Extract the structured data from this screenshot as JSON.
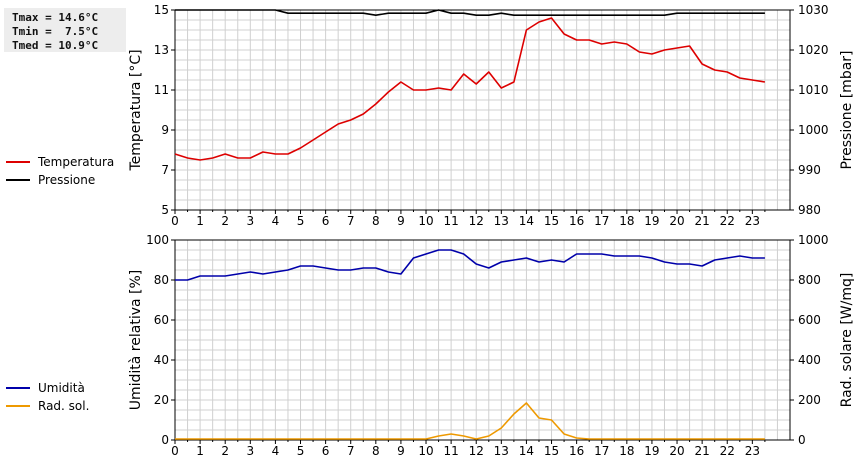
{
  "stats": {
    "tmax": "Tmax = 14.6°C",
    "tmin": "Tmin =  7.5°C",
    "tmed": "Tmed = 10.9°C"
  },
  "colors": {
    "temperature": "#dd0000",
    "pressure": "#000000",
    "humidity": "#0000aa",
    "radiation": "#ee9900",
    "grid": "#d0d0d0"
  },
  "chart_data": [
    {
      "type": "line",
      "x_ticks": [
        "0",
        "1",
        "2",
        "3",
        "4",
        "5",
        "6",
        "7",
        "8",
        "9",
        "10",
        "11",
        "12",
        "13",
        "14",
        "15",
        "16",
        "17",
        "18",
        "19",
        "20",
        "21",
        "22",
        "23"
      ],
      "xlim": [
        0,
        24.5
      ],
      "left_axis": {
        "label": "Temperatura [°C]",
        "lim": [
          5,
          15
        ],
        "ticks": [
          "5",
          "7",
          "9",
          "11",
          "13",
          "15"
        ]
      },
      "right_axis": {
        "label": "Pressione [mbar]",
        "lim": [
          980,
          1030
        ],
        "ticks": [
          "980",
          "990",
          "1000",
          "1010",
          "1020",
          "1030"
        ]
      },
      "grid": true,
      "legend_position": "left",
      "series": [
        {
          "name": "Temperatura",
          "axis": "left",
          "color": "#dd0000",
          "x": [
            0,
            0.5,
            1,
            1.5,
            2,
            2.5,
            3,
            3.5,
            4,
            4.5,
            5,
            5.5,
            6,
            6.5,
            7,
            7.5,
            8,
            8.5,
            9,
            9.5,
            10,
            10.5,
            11,
            11.5,
            12,
            12.5,
            13,
            13.5,
            14,
            14.5,
            15,
            15.5,
            16,
            16.5,
            17,
            17.5,
            18,
            18.5,
            19,
            19.5,
            20,
            20.5,
            21,
            21.5,
            22,
            22.5,
            23,
            23.5
          ],
          "y": [
            7.8,
            7.6,
            7.5,
            7.6,
            7.8,
            7.6,
            7.6,
            7.9,
            7.8,
            7.8,
            8.1,
            8.5,
            8.9,
            9.3,
            9.5,
            9.8,
            10.3,
            10.9,
            11.4,
            11.0,
            11.0,
            11.1,
            11.0,
            11.8,
            11.3,
            11.9,
            11.1,
            11.4,
            14.0,
            14.4,
            14.6,
            13.8,
            13.5,
            13.5,
            13.3,
            13.4,
            13.3,
            12.9,
            12.8,
            13.0,
            13.1,
            13.2,
            12.3,
            12.0,
            11.9,
            11.6,
            11.5,
            11.4
          ]
        },
        {
          "name": "Pressione",
          "axis": "right",
          "color": "#000000",
          "x": [
            0,
            0.5,
            1,
            1.5,
            2,
            2.5,
            3,
            3.5,
            4,
            4.5,
            5,
            5.5,
            6,
            6.5,
            7,
            7.5,
            8,
            8.5,
            9,
            9.5,
            10,
            10.5,
            11,
            11.5,
            12,
            12.5,
            13,
            13.5,
            14,
            14.5,
            15,
            15.5,
            16,
            16.5,
            17,
            17.5,
            18,
            18.5,
            19,
            19.5,
            20,
            20.5,
            21,
            21.5,
            22,
            22.5,
            23,
            23.5
          ],
          "y": [
            1030,
            1030,
            1030,
            1030,
            1030,
            1030,
            1030,
            1030,
            1030,
            1029.2,
            1029.2,
            1029.2,
            1029.2,
            1029.2,
            1029.2,
            1029.2,
            1028.7,
            1029.2,
            1029.2,
            1029.2,
            1029.2,
            1030,
            1029.2,
            1029.2,
            1028.7,
            1028.7,
            1029.2,
            1028.7,
            1028.7,
            1028.7,
            1028.7,
            1028.7,
            1028.7,
            1028.7,
            1028.7,
            1028.7,
            1028.7,
            1028.7,
            1028.7,
            1028.7,
            1029.2,
            1029.2,
            1029.2,
            1029.2,
            1029.2,
            1029.2,
            1029.2,
            1029.2
          ]
        }
      ]
    },
    {
      "type": "line",
      "x_ticks": [
        "0",
        "1",
        "2",
        "3",
        "4",
        "5",
        "6",
        "7",
        "8",
        "9",
        "10",
        "11",
        "12",
        "13",
        "14",
        "15",
        "16",
        "17",
        "18",
        "19",
        "20",
        "21",
        "22",
        "23"
      ],
      "xlim": [
        0,
        24.5
      ],
      "left_axis": {
        "label": "Umidità relativa [%]",
        "lim": [
          0,
          100
        ],
        "ticks": [
          "0",
          "20",
          "40",
          "60",
          "80",
          "100"
        ]
      },
      "right_axis": {
        "label": "Rad. solare [W/mq]",
        "lim": [
          0,
          1000
        ],
        "ticks": [
          "0",
          "200",
          "400",
          "600",
          "800",
          "1000"
        ]
      },
      "grid": true,
      "legend_position": "left",
      "series": [
        {
          "name": "Umidità",
          "axis": "left",
          "color": "#0000aa",
          "x": [
            0,
            0.5,
            1,
            1.5,
            2,
            2.5,
            3,
            3.5,
            4,
            4.5,
            5,
            5.5,
            6,
            6.5,
            7,
            7.5,
            8,
            8.5,
            9,
            9.5,
            10,
            10.5,
            11,
            11.5,
            12,
            12.5,
            13,
            13.5,
            14,
            14.5,
            15,
            15.5,
            16,
            16.5,
            17,
            17.5,
            18,
            18.5,
            19,
            19.5,
            20,
            20.5,
            21,
            21.5,
            22,
            22.5,
            23,
            23.5
          ],
          "y": [
            80,
            80,
            82,
            82,
            82,
            83,
            84,
            83,
            84,
            85,
            87,
            87,
            86,
            85,
            85,
            86,
            86,
            84,
            83,
            91,
            93,
            95,
            95,
            93,
            88,
            86,
            89,
            90,
            91,
            89,
            90,
            89,
            93,
            93,
            93,
            92,
            92,
            92,
            91,
            89,
            88,
            88,
            87,
            90,
            91,
            92,
            91,
            91
          ]
        },
        {
          "name": "Rad. sol.",
          "axis": "right",
          "color": "#ee9900",
          "x": [
            0,
            0.5,
            1,
            1.5,
            2,
            2.5,
            3,
            3.5,
            4,
            4.5,
            5,
            5.5,
            6,
            6.5,
            7,
            7.5,
            8,
            8.5,
            9,
            9.5,
            10,
            10.5,
            11,
            11.5,
            12,
            12.5,
            13,
            13.5,
            14,
            14.5,
            15,
            15.5,
            16,
            16.5,
            17,
            17.5,
            18,
            18.5,
            19,
            19.5,
            20,
            20.5,
            21,
            21.5,
            22,
            22.5,
            23,
            23.5
          ],
          "y": [
            5,
            5,
            5,
            5,
            5,
            5,
            5,
            5,
            5,
            5,
            5,
            5,
            5,
            5,
            5,
            5,
            5,
            5,
            5,
            5,
            5,
            20,
            30,
            20,
            5,
            20,
            60,
            130,
            185,
            110,
            100,
            30,
            10,
            5,
            5,
            5,
            5,
            5,
            5,
            5,
            5,
            5,
            5,
            5,
            5,
            5,
            5,
            5
          ]
        }
      ]
    }
  ]
}
